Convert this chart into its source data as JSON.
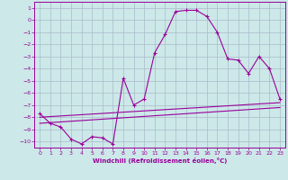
{
  "xlabel": "Windchill (Refroidissement éolien,°C)",
  "xlim": [
    -0.5,
    23.5
  ],
  "ylim": [
    -10.5,
    1.5
  ],
  "yticks": [
    1,
    0,
    -1,
    -2,
    -3,
    -4,
    -5,
    -6,
    -7,
    -8,
    -9,
    -10
  ],
  "xticks": [
    0,
    1,
    2,
    3,
    4,
    5,
    6,
    7,
    8,
    9,
    10,
    11,
    12,
    13,
    14,
    15,
    16,
    17,
    18,
    19,
    20,
    21,
    22,
    23
  ],
  "line_color": "#990099",
  "bg_color": "#cce8e8",
  "grid_color": "#aabbcc",
  "curve1_x": [
    0,
    1,
    2,
    3,
    4,
    5,
    6,
    7,
    8,
    9,
    10,
    11,
    12,
    13,
    14,
    15,
    16,
    17,
    18,
    19,
    20,
    21,
    22,
    23
  ],
  "curve1_y": [
    -7.7,
    -8.5,
    -8.8,
    -9.8,
    -10.2,
    -9.6,
    -9.7,
    -10.2,
    -4.8,
    -7.0,
    -6.5,
    -2.7,
    -1.2,
    0.7,
    0.8,
    0.8,
    0.3,
    -1.0,
    -3.2,
    -3.3,
    -4.4,
    -3.0,
    -4.0,
    -6.5
  ],
  "curve2_x": [
    0,
    23
  ],
  "curve2_y": [
    -8.0,
    -6.8
  ],
  "curve3_x": [
    0,
    23
  ],
  "curve3_y": [
    -8.5,
    -7.2
  ]
}
